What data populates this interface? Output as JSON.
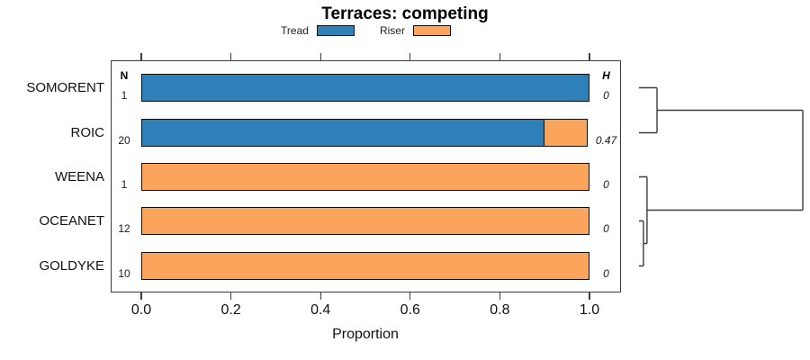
{
  "chart_data": {
    "type": "bar",
    "orientation": "horizontal",
    "title": "Terraces: competing",
    "xlabel": "Proportion",
    "xlim": [
      0.0,
      1.0
    ],
    "x_ticks": [
      "0.0",
      "0.2",
      "0.4",
      "0.6",
      "0.8",
      "1.0"
    ],
    "x_tick_values": [
      0.0,
      0.2,
      0.4,
      0.6,
      0.8,
      1.0
    ],
    "grid": false,
    "legend_position": "top",
    "legend": [
      {
        "label": "Tread",
        "color": "#2E81B8"
      },
      {
        "label": "Riser",
        "color": "#FBA55C"
      }
    ],
    "columns": {
      "n_header": "N",
      "h_header": "H"
    },
    "categories": [
      "SOMORENT",
      "ROIC",
      "WEENA",
      "OCEANET",
      "GOLDYKE"
    ],
    "series": [
      {
        "name": "Tread",
        "values": [
          1.0,
          0.9,
          0.0,
          0.0,
          0.0
        ]
      },
      {
        "name": "Riser",
        "values": [
          0.0,
          0.1,
          1.0,
          1.0,
          1.0
        ]
      }
    ],
    "rows": [
      {
        "label": "SOMORENT",
        "n": "1",
        "h": "0",
        "tread": 1.0,
        "riser": 0.0
      },
      {
        "label": "ROIC",
        "n": "20",
        "h": "0.47",
        "tread": 0.9,
        "riser": 0.1
      },
      {
        "label": "WEENA",
        "n": "1",
        "h": "0",
        "tread": 0.0,
        "riser": 1.0
      },
      {
        "label": "OCEANET",
        "n": "12",
        "h": "0",
        "tread": 0.0,
        "riser": 1.0
      },
      {
        "label": "GOLDYKE",
        "n": "10",
        "h": "0",
        "tread": 0.0,
        "riser": 1.0
      }
    ],
    "dendrogram": {
      "merges": [
        {
          "left": 3,
          "right": 4,
          "height": 0.027
        },
        {
          "left": 2,
          "right": "m0",
          "height": 0.049
        },
        {
          "left": 0,
          "right": 1,
          "height": 0.11
        },
        {
          "left": "m2",
          "right": "m1",
          "height": 1.0
        }
      ]
    },
    "colors": {
      "tread": "#2E81B8",
      "riser": "#FBA55C",
      "frame": "#3C3C3C",
      "dendrogram": "#3C3C3C",
      "bar_border": "#0F0F0F"
    }
  }
}
